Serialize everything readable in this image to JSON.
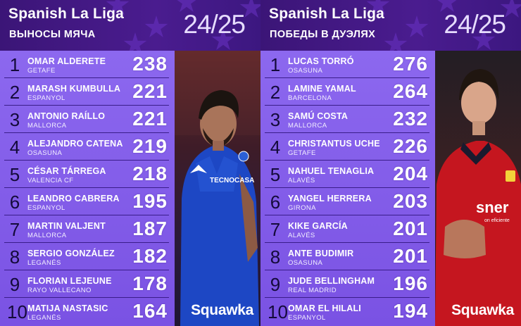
{
  "panels": [
    {
      "league": "Spanish La Liga",
      "stat": "ВЫНОСЫ МЯЧА",
      "season": "24/25",
      "logo": "Squawka",
      "rows": [
        {
          "rank": "1",
          "name": "OMAR ALDERETE",
          "club": "GETAFE",
          "value": "238"
        },
        {
          "rank": "2",
          "name": "MARASH KUMBULLA",
          "club": "ESPANYOL",
          "value": "221"
        },
        {
          "rank": "3",
          "name": "ANTONIO RAÍLLO",
          "club": "MALLORCA",
          "value": "221"
        },
        {
          "rank": "4",
          "name": "ALEJANDRO CATENA",
          "club": "OSASUNA",
          "value": "219"
        },
        {
          "rank": "5",
          "name": "CÉSAR TÁRREGA",
          "club": "VALENCIA CF",
          "value": "218"
        },
        {
          "rank": "6",
          "name": "LEANDRO CABRERA",
          "club": "ESPANYOL",
          "value": "195"
        },
        {
          "rank": "7",
          "name": "MARTIN VALJENT",
          "club": "MALLORCA",
          "value": "187"
        },
        {
          "rank": "8",
          "name": "SERGIO GONZÁLEZ",
          "club": "LEGANÉS",
          "value": "182"
        },
        {
          "rank": "9",
          "name": "FLORIAN LEJEUNE",
          "club": "RAYO VALLECANO",
          "value": "178"
        },
        {
          "rank": "10",
          "name": "MATIJA NASTASIC",
          "club": "LEGANÉS",
          "value": "164"
        }
      ],
      "photo": {
        "shirt_sponsor": "TECNOCASA",
        "kit_color": "#1d47c4"
      }
    },
    {
      "league": "Spanish La Liga",
      "stat": "ПОБЕДЫ В ДУЭЛЯХ",
      "season": "24/25",
      "logo": "Squawka",
      "rows": [
        {
          "rank": "1",
          "name": "LUCAS TORRÓ",
          "club": "OSASUNA",
          "value": "276"
        },
        {
          "rank": "2",
          "name": "LAMINE YAMAL",
          "club": "BARCELONA",
          "value": "264"
        },
        {
          "rank": "3",
          "name": "SAMÚ COSTA",
          "club": "MALLORCA",
          "value": "232"
        },
        {
          "rank": "4",
          "name": "CHRISTANTUS UCHE",
          "club": "GETAFE",
          "value": "226"
        },
        {
          "rank": "5",
          "name": "NAHUEL TENAGLIA",
          "club": "ALAVÉS",
          "value": "204"
        },
        {
          "rank": "6",
          "name": "YANGEL HERRERA",
          "club": "GIRONA",
          "value": "203"
        },
        {
          "rank": "7",
          "name": "KIKE GARCÍA",
          "club": "ALAVÉS",
          "value": "201"
        },
        {
          "rank": "8",
          "name": "ANTE BUDIMIR",
          "club": "OSASUNA",
          "value": "201"
        },
        {
          "rank": "9",
          "name": "JUDE BELLINGHAM",
          "club": "REAL MADRID",
          "value": "196"
        },
        {
          "rank": "10",
          "name": "OMAR EL HILALI",
          "club": "ESPANYOL",
          "value": "194"
        }
      ],
      "photo": {
        "shirt_sponsor": "sner",
        "shirt_sub": "on eficiente",
        "kit_color": "#c5161f"
      }
    }
  ]
}
